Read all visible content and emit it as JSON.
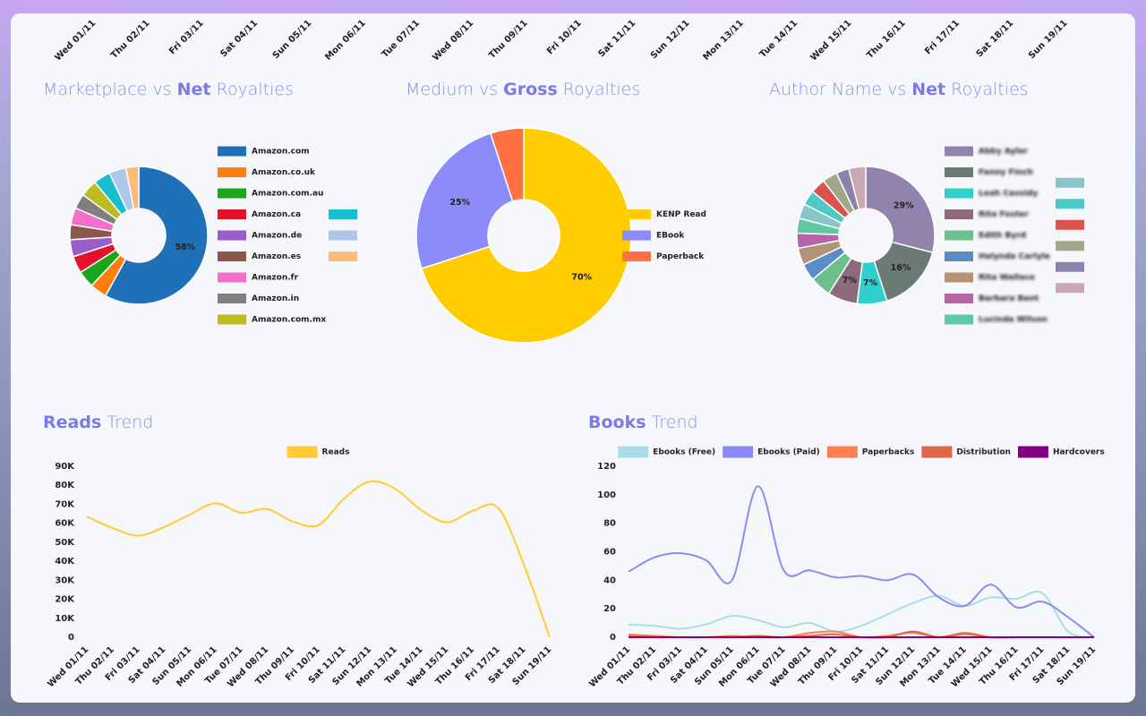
{
  "top_strip": {
    "labels": [
      "Wed 01/11",
      "Thu 02/11",
      "Fri 03/11",
      "Sat 04/11",
      "Sun 05/11",
      "Mon 06/11",
      "Tue 07/11",
      "Wed 08/11",
      "Thu 09/11",
      "Fri 10/11",
      "Sat 11/11",
      "Sun 12/11",
      "Mon 13/11",
      "Tue 14/11",
      "Wed 15/11",
      "Thu 16/11",
      "Fri 17/11",
      "Sat 18/11",
      "Sun 19/11"
    ]
  },
  "chart_data": [
    {
      "type": "pie",
      "title": [
        {
          "text": "Marketplace vs"
        },
        {
          "text": "Net",
          "bold": true
        },
        {
          "text": "Royalties"
        }
      ],
      "categories": [
        "Amazon.com",
        "Amazon.co.uk",
        "Amazon.com.au",
        "Amazon.ca",
        "Amazon.de",
        "Amazon.es",
        "Amazon.fr",
        "Amazon.in",
        "Amazon.com.mx",
        null,
        null,
        null
      ],
      "values": [
        58,
        4,
        4,
        4,
        4,
        3.5,
        4,
        3.5,
        4,
        4,
        4,
        3
      ],
      "value_labels": [
        "58%",
        null,
        null,
        null,
        null,
        null,
        null,
        null,
        null,
        null,
        null,
        null
      ],
      "colors": [
        "#1f70b8",
        "#ff7f0e",
        "#1ca51c",
        "#e4112b",
        "#9b5ec8",
        "#8c564b",
        "#f26fca",
        "#7f7f7f",
        "#bcbd22",
        "#17becf",
        "#aec7e8",
        "#ffbb78"
      ]
    },
    {
      "type": "pie",
      "title": [
        {
          "text": "Medium vs"
        },
        {
          "text": "Gross",
          "bold": true
        },
        {
          "text": "Royalties"
        }
      ],
      "categories": [
        "KENP Read",
        "EBook",
        "Paperback"
      ],
      "values": [
        70,
        25,
        5
      ],
      "value_labels": [
        "70%",
        "25%",
        null
      ],
      "colors": [
        "#ffcc00",
        "#8b8bfa",
        "#ff7043"
      ]
    },
    {
      "type": "pie",
      "title": [
        {
          "text": "Author Name vs"
        },
        {
          "text": "Net",
          "bold": true
        },
        {
          "text": "Royalties"
        }
      ],
      "blurred_labels": true,
      "categories": [
        "Abby Ayler",
        "Fanny Finch",
        "Leah Cassidy",
        "Rita Foster",
        "Edith Byrd",
        "Halynda Carlyle",
        "Rita Wallace",
        "Barbara Bent",
        "Lucinda Wilson",
        null,
        null,
        null,
        null,
        null,
        null
      ],
      "values": [
        29,
        16,
        7,
        7,
        5,
        4,
        4,
        3.5,
        3.5,
        3.5,
        3.5,
        3.5,
        3.5,
        3,
        4
      ],
      "value_labels": [
        "29%",
        "16%",
        "7%",
        "7%",
        null,
        null,
        null,
        null,
        null,
        null,
        null,
        null,
        null,
        null,
        null
      ],
      "colors": [
        "#9183ad",
        "#6c7a74",
        "#2ecfcf",
        "#8e6a7e",
        "#6cc08b",
        "#5b8ec6",
        "#b39375",
        "#b565a7",
        "#5fc8a8",
        "#88c4c8",
        "#4fc9c5",
        "#d9534f",
        "#a4a68a",
        "#8b84a8",
        "#c9a8b5"
      ]
    },
    {
      "type": "line",
      "title": [
        {
          "text": "Reads",
          "bold": true
        },
        {
          "text": "Trend"
        }
      ],
      "x": [
        "Wed 01/11",
        "Thu 02/11",
        "Fri 03/11",
        "Sat 04/11",
        "Sun 05/11",
        "Mon 06/11",
        "Tue 07/11",
        "Wed 08/11",
        "Thu 09/11",
        "Fri 10/11",
        "Sat 11/11",
        "Sun 12/11",
        "Mon 13/11",
        "Tue 14/11",
        "Wed 15/11",
        "Thu 16/11",
        "Fri 17/11",
        "Sat 18/11",
        "Sun 19/11"
      ],
      "series": [
        {
          "name": "Reads",
          "color": "#ffcc33",
          "values": [
            63500,
            57500,
            53500,
            58000,
            64500,
            70500,
            65500,
            67500,
            61000,
            59000,
            73000,
            82000,
            78000,
            67000,
            60500,
            66500,
            68000,
            38000,
            0
          ]
        }
      ],
      "ylim": [
        0,
        90000
      ],
      "yticks": [
        0,
        {
          "value": 10000,
          "label": "10K"
        },
        {
          "value": 20000,
          "label": "20K"
        },
        {
          "value": 30000,
          "label": "30K"
        },
        {
          "value": 40000,
          "label": "40K"
        },
        {
          "value": 50000,
          "label": "50K"
        },
        {
          "value": 60000,
          "label": "60K"
        },
        {
          "value": 70000,
          "label": "70K"
        },
        {
          "value": 80000,
          "label": "80K"
        },
        {
          "value": 90000,
          "label": "90K"
        }
      ]
    },
    {
      "type": "line",
      "title": [
        {
          "text": "Books",
          "bold": true
        },
        {
          "text": "Trend"
        }
      ],
      "x": [
        "Wed 01/11",
        "Thu 02/11",
        "Fri 03/11",
        "Sat 04/11",
        "Sun 05/11",
        "Mon 06/11",
        "Tue 07/11",
        "Wed 08/11",
        "Thu 09/11",
        "Fri 10/11",
        "Sat 11/11",
        "Sun 12/11",
        "Mon 13/11",
        "Tue 14/11",
        "Wed 15/11",
        "Thu 16/11",
        "Fri 17/11",
        "Sat 18/11",
        "Sun 19/11"
      ],
      "series": [
        {
          "name": "Ebooks (Free)",
          "color": "#a8dde8",
          "values": [
            9,
            8,
            6,
            9,
            15,
            12,
            7,
            10,
            4,
            8,
            16,
            24,
            29,
            22,
            28,
            27,
            31,
            4,
            0
          ]
        },
        {
          "name": "Ebooks (Paid)",
          "color": "#8b8bf5",
          "values": [
            46,
            56,
            59,
            54,
            40,
            106,
            47,
            47,
            42,
            43,
            40,
            44,
            28,
            22,
            37,
            21,
            25,
            14,
            0
          ]
        },
        {
          "name": "Paperbacks",
          "color": "#ff7f50",
          "values": [
            2,
            1,
            0,
            0,
            1,
            0,
            0,
            3,
            4,
            0,
            1,
            3,
            0,
            2,
            0,
            0,
            0,
            0,
            0
          ]
        },
        {
          "name": "Distribution",
          "color": "#e0664a",
          "values": [
            1,
            0,
            0,
            0,
            0,
            1,
            0,
            1,
            2,
            0,
            0,
            4,
            0,
            3,
            0,
            0,
            0,
            0,
            0
          ]
        },
        {
          "name": "Hardcovers",
          "color": "#800080",
          "values": [
            0,
            0,
            0,
            0,
            0,
            0,
            0,
            0,
            0,
            0,
            0,
            0,
            0,
            0,
            0,
            0,
            0,
            0,
            0
          ]
        }
      ],
      "ylim": [
        0,
        120
      ],
      "yticks": [
        0,
        20,
        40,
        60,
        80,
        100,
        120
      ]
    }
  ]
}
